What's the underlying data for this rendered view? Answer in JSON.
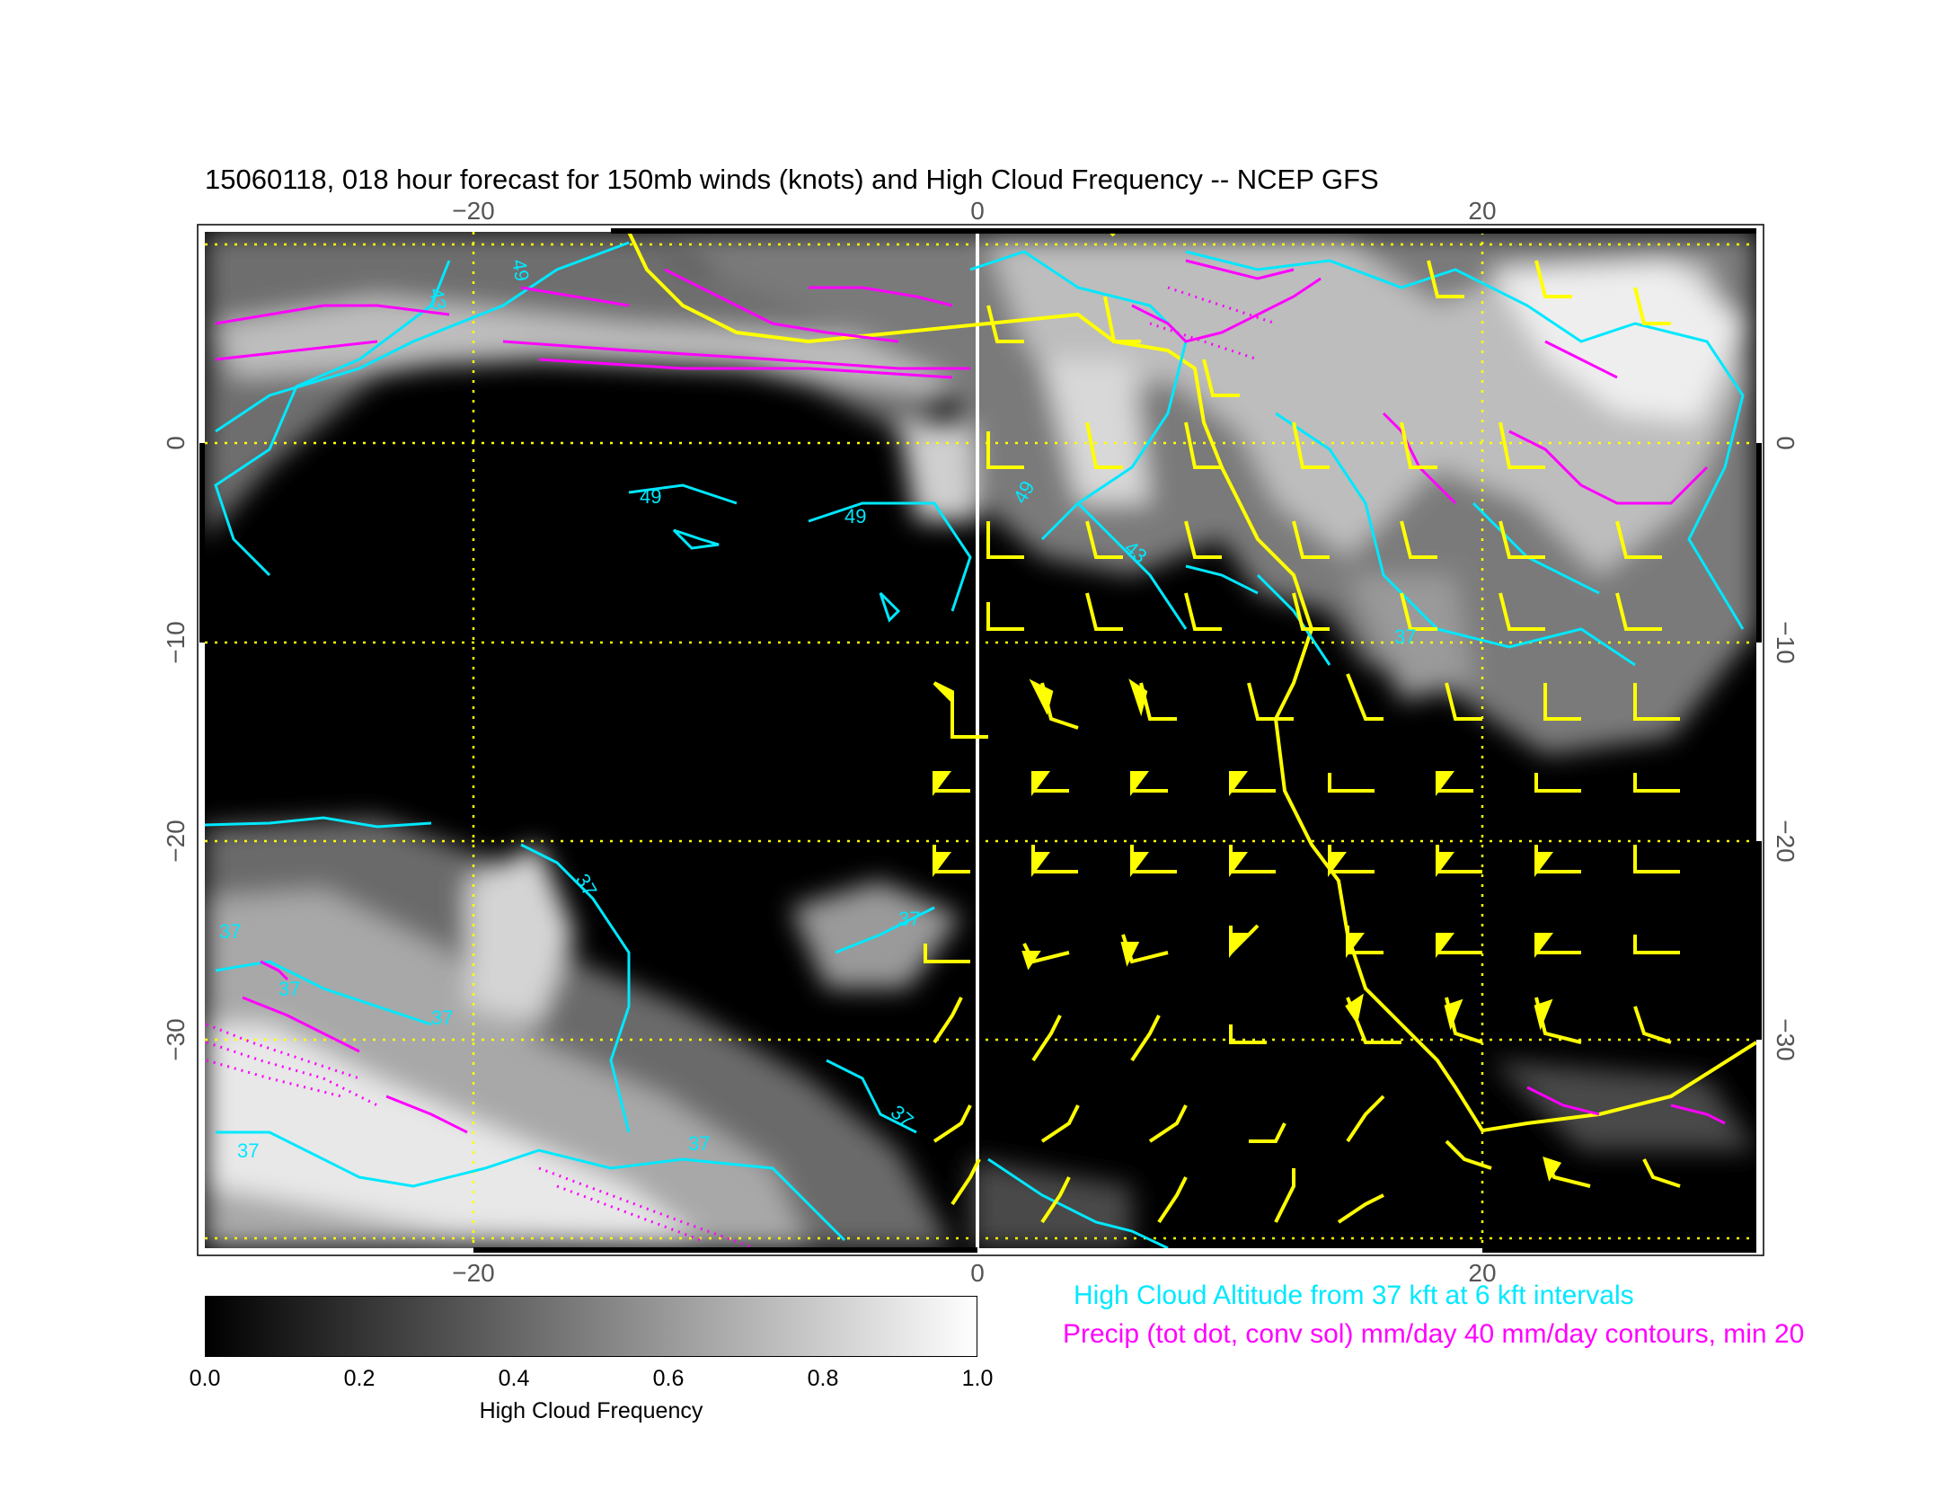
{
  "title": "15060118, 018 hour forecast for 150mb winds (knots) and High Cloud Frequency -- NCEP GFS",
  "map": {
    "lon_range": [
      -31,
      31
    ],
    "lat_range": [
      -40,
      11
    ],
    "lon_ticks": [
      {
        "value": -20,
        "label": "−20"
      },
      {
        "value": 0,
        "label": "0"
      },
      {
        "value": 20,
        "label": "20"
      }
    ],
    "lat_ticks": [
      {
        "value": 0,
        "label": "0"
      },
      {
        "value": -10,
        "label": "−10"
      },
      {
        "value": -20,
        "label": "−20"
      },
      {
        "value": -30,
        "label": "−30"
      }
    ],
    "grid_lons": [
      -20,
      0,
      20
    ],
    "grid_lats": [
      10,
      0,
      -10,
      -20,
      -30,
      -40
    ],
    "grid_color": "#ffff00",
    "wind_barb_color": "#ffff00",
    "cloud_altitude_color": "#00e8ff",
    "precip_color": "#ff00ff",
    "contour_labels": [
      "43",
      "49",
      "49",
      "49",
      "49",
      "43",
      "37",
      "37",
      "37",
      "37",
      "37",
      "37",
      "37",
      "37",
      "37"
    ]
  },
  "legend": {
    "cloud_altitude": "High Cloud Altitude from 37 kft at 6 kft intervals",
    "precip": "Precip (tot dot, conv sol) mm/day 40 mm/day contours, min 20"
  },
  "colorbar": {
    "label": "High Cloud Frequency",
    "ticks": [
      "0.0",
      "0.2",
      "0.4",
      "0.6",
      "0.8",
      "1.0"
    ],
    "range": [
      0.0,
      1.0
    ]
  }
}
